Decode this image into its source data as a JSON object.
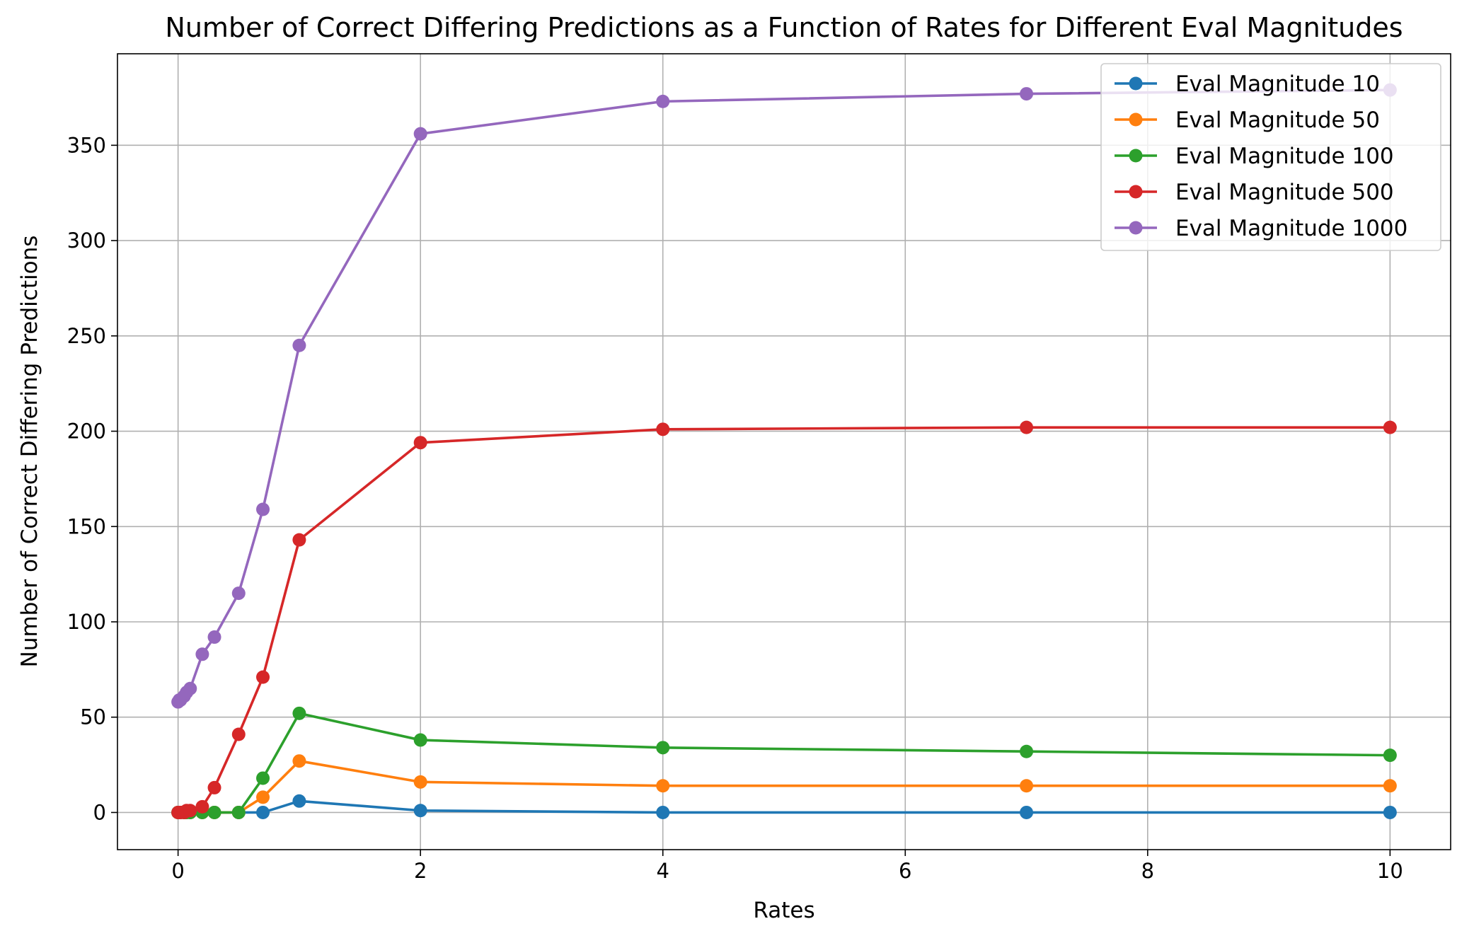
{
  "chart_data": {
    "type": "line",
    "title": "Number of Correct Differing Predictions as a Function of Rates for Different Eval Magnitudes",
    "xlabel": "Rates",
    "ylabel": "Number of Correct Differing Predictions",
    "xlim": [
      -0.5,
      10.5
    ],
    "ylim": [
      -19.5,
      398
    ],
    "xticks": [
      0,
      2,
      4,
      6,
      8,
      10
    ],
    "yticks": [
      0,
      50,
      100,
      150,
      200,
      250,
      300,
      350
    ],
    "grid": true,
    "legend_position": "top-right",
    "x": [
      0,
      0.01,
      0.02,
      0.05,
      0.07,
      0.1,
      0.2,
      0.3,
      0.5,
      0.7,
      1,
      2,
      4,
      7,
      10
    ],
    "series": [
      {
        "name": "Eval Magnitude 10",
        "color": "#1f77b4",
        "values": [
          0,
          0,
          0,
          0,
          0,
          0,
          0,
          0,
          0,
          0,
          6,
          1,
          0,
          0,
          0
        ]
      },
      {
        "name": "Eval Magnitude 50",
        "color": "#ff7f0e",
        "values": [
          0,
          0,
          0,
          0,
          0,
          0,
          0,
          0,
          0,
          8,
          27,
          16,
          14,
          14,
          14
        ]
      },
      {
        "name": "Eval Magnitude 100",
        "color": "#2ca02c",
        "values": [
          0,
          0,
          0,
          0,
          0,
          0,
          0,
          0,
          0,
          18,
          52,
          38,
          34,
          32,
          30
        ]
      },
      {
        "name": "Eval Magnitude 500",
        "color": "#d62728",
        "values": [
          0,
          0,
          0,
          0,
          1,
          1,
          3,
          13,
          41,
          71,
          143,
          194,
          201,
          202,
          202
        ]
      },
      {
        "name": "Eval Magnitude 1000",
        "color": "#9467bd",
        "values": [
          58,
          59,
          59,
          61,
          63,
          65,
          83,
          92,
          115,
          159,
          245,
          356,
          373,
          377,
          379
        ]
      }
    ]
  }
}
